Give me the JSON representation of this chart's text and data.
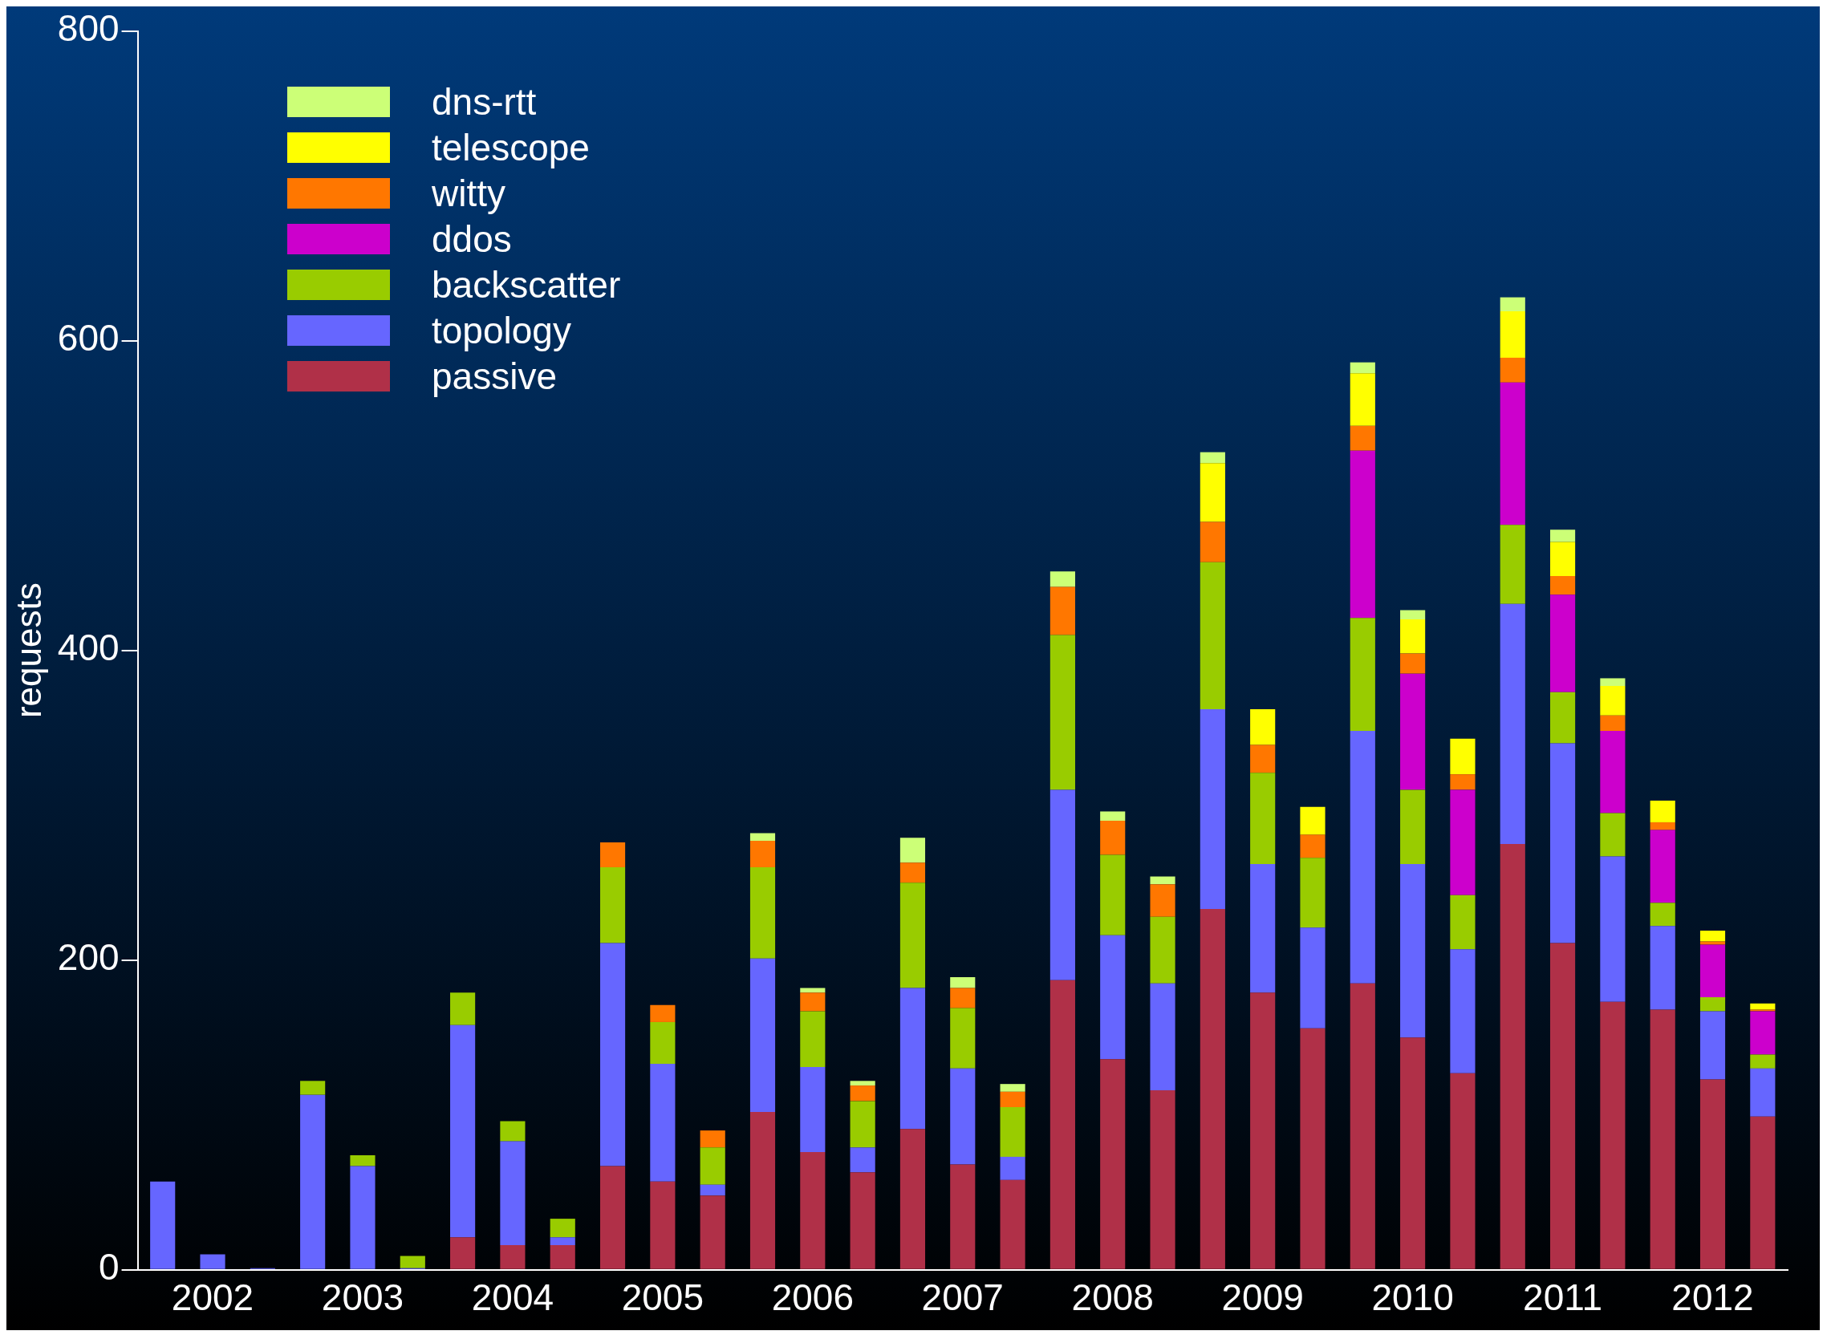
{
  "chart_data": {
    "type": "bar",
    "stacked": true,
    "ylabel": "requests",
    "legend": "top left",
    "grid": false,
    "categories": [
      null,
      "2002",
      null,
      null,
      "2003",
      null,
      null,
      "2004",
      null,
      null,
      "2005",
      null,
      null,
      "2006",
      null,
      null,
      "2007",
      null,
      null,
      "2008",
      null,
      null,
      "2009",
      null,
      null,
      "2010",
      null,
      null,
      "2011",
      null,
      null,
      "2012",
      null
    ],
    "ylim": [
      0,
      800
    ],
    "yticks": [
      0,
      200,
      400,
      600,
      800
    ],
    "series": [
      {
        "name": "passive",
        "color": "#b03048",
        "values": [
          0,
          0,
          0,
          0,
          0,
          0,
          21,
          16,
          16,
          67,
          57,
          48,
          102,
          76,
          63,
          91,
          68,
          58,
          187,
          136,
          116,
          233,
          179,
          156,
          185,
          150,
          127,
          275,
          211,
          173,
          168,
          123,
          99
        ]
      },
      {
        "name": "topology",
        "color": "#6666ff",
        "values": [
          57,
          10,
          1,
          113,
          67,
          1,
          137,
          67,
          5,
          144,
          76,
          7,
          99,
          55,
          16,
          91,
          62,
          15,
          123,
          80,
          69,
          129,
          83,
          65,
          163,
          112,
          80,
          155,
          129,
          94,
          54,
          44,
          31
        ]
      },
      {
        "name": "backscatter",
        "color": "#99cc00",
        "values": [
          0,
          0,
          0,
          9,
          7,
          8,
          21,
          13,
          12,
          49,
          27,
          24,
          59,
          36,
          30,
          68,
          39,
          32,
          100,
          52,
          43,
          95,
          59,
          45,
          73,
          48,
          35,
          51,
          33,
          28,
          15,
          9,
          9
        ]
      },
      {
        "name": "ddos",
        "color": "#cc00cc",
        "values": [
          0,
          0,
          0,
          0,
          0,
          0,
          0,
          0,
          0,
          0,
          0,
          0,
          0,
          0,
          0,
          0,
          0,
          0,
          0,
          0,
          0,
          0,
          0,
          0,
          108,
          75,
          68,
          92,
          63,
          53,
          47,
          34,
          28
        ]
      },
      {
        "name": "witty",
        "color": "#ff7700",
        "values": [
          0,
          0,
          0,
          0,
          0,
          0,
          0,
          0,
          0,
          16,
          11,
          11,
          17,
          12,
          10,
          13,
          13,
          10,
          31,
          22,
          21,
          26,
          18,
          15,
          16,
          13,
          10,
          16,
          12,
          10,
          5,
          2,
          1
        ]
      },
      {
        "name": "telescope",
        "color": "#ffff00",
        "values": [
          0,
          0,
          0,
          0,
          0,
          0,
          0,
          0,
          0,
          0,
          0,
          0,
          0,
          0,
          0,
          0,
          0,
          0,
          0,
          0,
          0,
          38,
          23,
          18,
          34,
          22,
          23,
          30,
          22,
          19,
          14,
          7,
          4
        ]
      },
      {
        "name": "dns-rtt",
        "color": "#ccff77",
        "values": [
          0,
          0,
          0,
          0,
          0,
          0,
          0,
          0,
          0,
          0,
          0,
          0,
          5,
          3,
          3,
          16,
          7,
          5,
          10,
          6,
          5,
          7,
          0,
          0,
          7,
          6,
          0,
          9,
          8,
          5,
          0,
          0,
          0
        ]
      }
    ]
  }
}
